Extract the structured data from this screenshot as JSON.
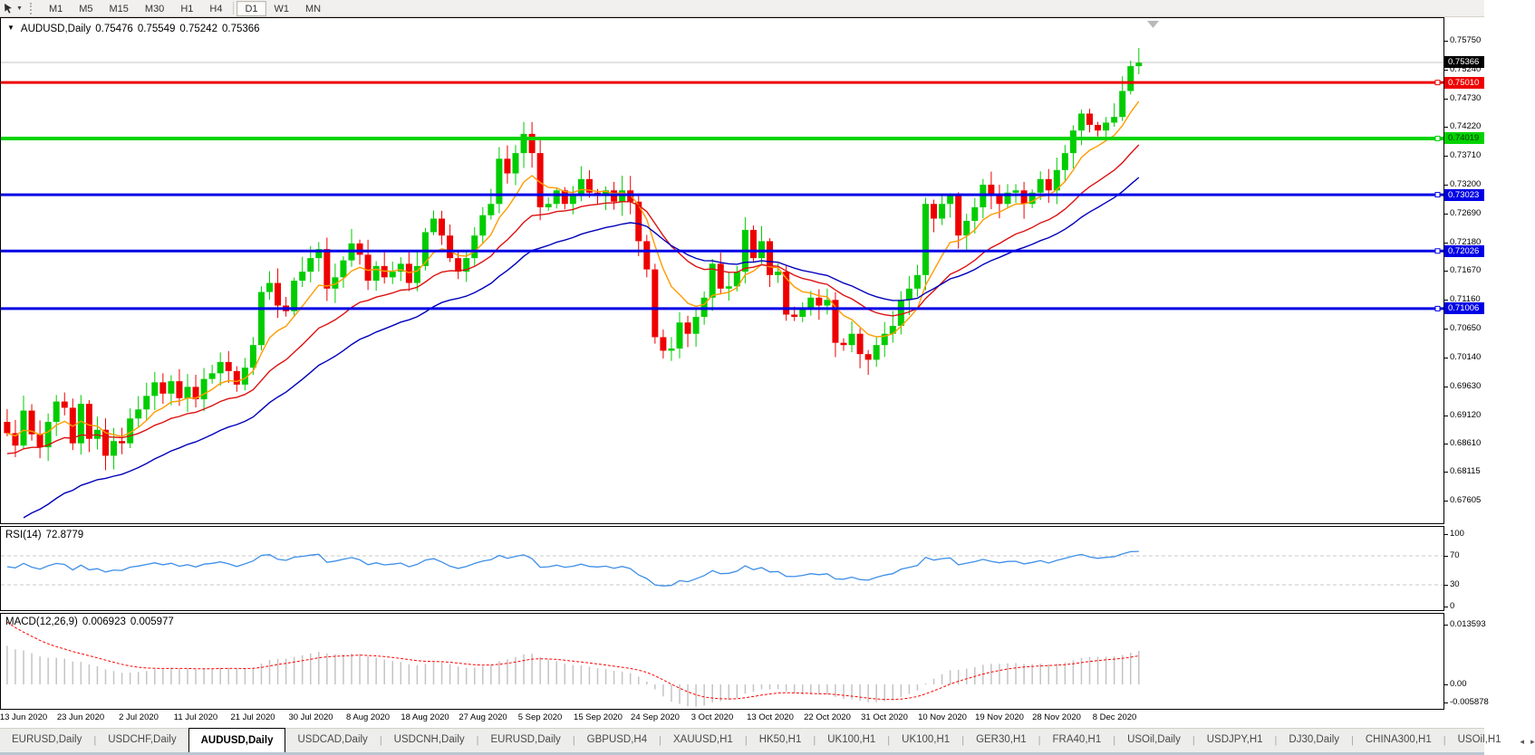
{
  "icons": {
    "caret_down": "▼",
    "header_caret": "▼",
    "data_shift_marker": "▼",
    "tab_separator": "|",
    "tab_scroll_left": "◂",
    "tab_scroll_right": "▸"
  },
  "toolbar": {
    "timeframes": [
      {
        "label": "M1",
        "active": false
      },
      {
        "label": "M5",
        "active": false
      },
      {
        "label": "M15",
        "active": false
      },
      {
        "label": "M30",
        "active": false
      },
      {
        "label": "H1",
        "active": false
      },
      {
        "label": "H4",
        "active": false
      },
      {
        "label": "D1",
        "active": true
      },
      {
        "label": "W1",
        "active": false
      },
      {
        "label": "MN",
        "active": false
      }
    ]
  },
  "chart": {
    "title": {
      "symbol": "AUDUSD,Daily",
      "open": "0.75476",
      "high": "0.75549",
      "low": "0.75242",
      "close": "0.75366"
    }
  },
  "rsi": {
    "label": "RSI(14)",
    "value": "72.8779"
  },
  "macd": {
    "label": "MACD(12,26,9)",
    "main_value": "0.006923",
    "signal_value": "0.005977"
  },
  "tabbar": {
    "tabs": [
      {
        "label": "EURUSD,Daily",
        "active": false
      },
      {
        "label": "USDCHF,Daily",
        "active": false
      },
      {
        "label": "AUDUSD,Daily",
        "active": true
      },
      {
        "label": "USDCAD,Daily",
        "active": false
      },
      {
        "label": "USDCNH,Daily",
        "active": false
      },
      {
        "label": "EURUSD,Daily",
        "active": false
      },
      {
        "label": "GBPUSD,H4",
        "active": false
      },
      {
        "label": "XAUUSD,H1",
        "active": false
      },
      {
        "label": "HK50,H1",
        "active": false
      },
      {
        "label": "UK100,H1",
        "active": false
      },
      {
        "label": "UK100,H1",
        "active": false
      },
      {
        "label": "GER30,H1",
        "active": false
      },
      {
        "label": "FRA40,H1",
        "active": false
      },
      {
        "label": "USOil,Daily",
        "active": false
      },
      {
        "label": "USDJPY,H1",
        "active": false
      },
      {
        "label": "DJ30,Daily",
        "active": false
      },
      {
        "label": "CHINA300,H1",
        "active": false
      },
      {
        "label": "USOil,H1",
        "active": false
      }
    ]
  },
  "chart_data": {
    "type": "candlestick_with_indicators",
    "symbol": "AUDUSD",
    "timeframe": "Daily",
    "current": {
      "open": 0.75476,
      "high": 0.75549,
      "low": 0.75242,
      "close": 0.75366
    },
    "price_axis_ticks": [
      "0.75750",
      "0.75240",
      "0.74730",
      "0.74220",
      "0.73710",
      "0.73200",
      "0.72690",
      "0.72180",
      "0.71670",
      "0.71160",
      "0.70650",
      "0.70140",
      "0.69630",
      "0.69120",
      "0.68610",
      "0.68115",
      "0.67605"
    ],
    "price_badges": [
      {
        "text": "0.75366",
        "bg": "#000000",
        "fg": "#ffffff",
        "value": 0.75366
      },
      {
        "text": "0.75010",
        "bg": "#ee0000",
        "fg": "#ffffff",
        "value": 0.7501
      },
      {
        "text": "0.74019",
        "bg": "#00d300",
        "fg": "#003300",
        "value": 0.74019
      },
      {
        "text": "0.73023",
        "bg": "#0000e6",
        "fg": "#ffffff",
        "value": 0.73023
      },
      {
        "text": "0.72026",
        "bg": "#0000e6",
        "fg": "#ffffff",
        "value": 0.72026
      },
      {
        "text": "0.71006",
        "bg": "#0000e6",
        "fg": "#ffffff",
        "value": 0.71006
      }
    ],
    "horizontal_lines": [
      {
        "price": 0.7501,
        "color": "#ee0000",
        "width": 3
      },
      {
        "price": 0.74019,
        "color": "#00d300",
        "width": 4
      },
      {
        "price": 0.73023,
        "color": "#0000e6",
        "width": 3
      },
      {
        "price": 0.72026,
        "color": "#0000e6",
        "width": 3
      },
      {
        "price": 0.71006,
        "color": "#0000e6",
        "width": 3
      }
    ],
    "current_price_line": {
      "price": 0.75366,
      "color": "#c4c4c4"
    },
    "candles": {
      "first_open": 0.69,
      "closes": [
        0.688,
        0.6858,
        0.692,
        0.6878,
        0.6855,
        0.69,
        0.6936,
        0.6925,
        0.6862,
        0.6932,
        0.687,
        0.6886,
        0.684,
        0.6866,
        0.6862,
        0.6906,
        0.6922,
        0.6946,
        0.697,
        0.695,
        0.6972,
        0.6942,
        0.6962,
        0.694,
        0.6976,
        0.6986,
        0.7006,
        0.699,
        0.6966,
        0.6996,
        0.7036,
        0.713,
        0.7146,
        0.7106,
        0.7096,
        0.715,
        0.7166,
        0.719,
        0.7206,
        0.7136,
        0.7156,
        0.7186,
        0.7216,
        0.7196,
        0.715,
        0.7176,
        0.7156,
        0.7166,
        0.718,
        0.7146,
        0.7176,
        0.7236,
        0.726,
        0.723,
        0.719,
        0.7166,
        0.719,
        0.723,
        0.7266,
        0.7286,
        0.7366,
        0.734,
        0.7376,
        0.741,
        0.7376,
        0.728,
        0.7286,
        0.731,
        0.7286,
        0.73,
        0.733,
        0.7306,
        0.73,
        0.731,
        0.729,
        0.731,
        0.729,
        0.722,
        0.717,
        0.705,
        0.7026,
        0.703,
        0.7076,
        0.7056,
        0.7086,
        0.712,
        0.718,
        0.7136,
        0.714,
        0.7166,
        0.724,
        0.719,
        0.722,
        0.716,
        0.7166,
        0.709,
        0.7086,
        0.71,
        0.712,
        0.7106,
        0.7116,
        0.704,
        0.7036,
        0.7056,
        0.702,
        0.701,
        0.7036,
        0.7056,
        0.707,
        0.7116,
        0.7136,
        0.716,
        0.7286,
        0.726,
        0.7286,
        0.73,
        0.723,
        0.7256,
        0.728,
        0.732,
        0.73,
        0.7286,
        0.7306,
        0.731,
        0.7286,
        0.7306,
        0.733,
        0.731,
        0.7346,
        0.7376,
        0.7416,
        0.7446,
        0.7426,
        0.7416,
        0.743,
        0.744,
        0.7486,
        0.753,
        0.7536
      ],
      "bull_color": "#00cc00",
      "bear_color": "#ee0000"
    },
    "moving_averages": [
      {
        "name": "fast",
        "period": 8,
        "seed": 0.688,
        "color": "#ff9c00"
      },
      {
        "name": "medium",
        "period": 20,
        "seed": 0.684,
        "color": "#dd1111"
      },
      {
        "name": "slow",
        "period": 34,
        "seed": 0.67,
        "color": "#0000bb"
      }
    ],
    "rsi_panel": {
      "period": 14,
      "last_value": 72.8779,
      "line_color": "#3e8fe8",
      "levels": [
        70,
        30
      ],
      "axis_ticks": [
        "100",
        "70",
        "30",
        "0"
      ]
    },
    "macd_panel": {
      "fast": 12,
      "slow": 26,
      "signal": 9,
      "hist_color": "#c4c4c4",
      "signal_color": "#ff0000",
      "axis_ticks": [
        {
          "value": 0.013593,
          "label": "0.013593"
        },
        {
          "value": 0.0,
          "label": "0.00"
        },
        {
          "value": -0.005878,
          "label": "-0.005878"
        }
      ]
    },
    "date_ticks": [
      "13 Jun 2020",
      "23 Jun 2020",
      "2 Jul 2020",
      "11 Jul 2020",
      "21 Jul 2020",
      "30 Jul 2020",
      "8 Aug 2020",
      "18 Aug 2020",
      "27 Aug 2020",
      "5 Sep 2020",
      "15 Sep 2020",
      "24 Sep 2020",
      "3 Oct 2020",
      "13 Oct 2020",
      "22 Oct 2020",
      "31 Oct 2020",
      "10 Nov 2020",
      "19 Nov 2020",
      "28 Nov 2020",
      "8 Dec 2020"
    ]
  }
}
